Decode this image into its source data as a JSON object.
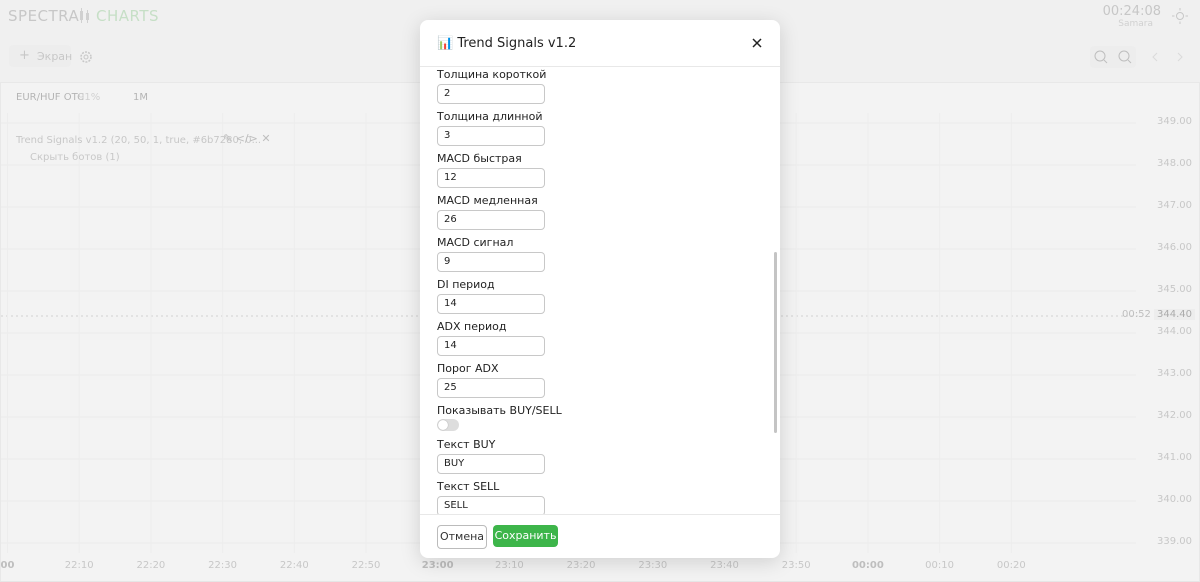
{
  "header": {
    "logo_left": "SPECTRA",
    "logo_right": "CHARTS",
    "clock": "00:24:08",
    "timezone": "Samara"
  },
  "toolbar": {
    "screen_button": "Экран"
  },
  "chart": {
    "symbol": "EUR/HUF OTC",
    "payout": "91%",
    "timeframe": "1M",
    "indicator": "Trend Signals v1.2 (20, 50, 1, true, #6b7280, 0...",
    "bots": "Скрыть ботов (1)",
    "price_labels": [
      "349.00",
      "348.00",
      "347.00",
      "346.00",
      "345.00",
      "344.00",
      "343.00",
      "342.00",
      "341.00",
      "340.00",
      "339.00"
    ],
    "current_price": "344.40",
    "countdown": "00:52",
    "time_labels": [
      "00",
      "22:10",
      "22:20",
      "22:30",
      "22:40",
      "22:50",
      "23:00",
      "23:10",
      "23:20",
      "23:30",
      "23:40",
      "23:50",
      "00:00",
      "00:10",
      "00:20"
    ]
  },
  "modal": {
    "title": "📊 Trend Signals v1.2",
    "fields": [
      {
        "label": "Толщина короткой",
        "value": "2"
      },
      {
        "label": "Толщина длинной",
        "value": "3"
      },
      {
        "label": "MACD быстрая",
        "value": "12"
      },
      {
        "label": "MACD медленная",
        "value": "26"
      },
      {
        "label": "MACD сигнал",
        "value": "9"
      },
      {
        "label": "DI период",
        "value": "14"
      },
      {
        "label": "ADX период",
        "value": "14"
      },
      {
        "label": "Порог ADX",
        "value": "25"
      },
      {
        "label": "Показывать BUY/SELL",
        "toggle": false
      },
      {
        "label": "Текст BUY",
        "value": "BUY"
      },
      {
        "label": "Текст SELL",
        "value": "SELL"
      }
    ],
    "cancel": "Отмена",
    "save": "Сохранить"
  }
}
